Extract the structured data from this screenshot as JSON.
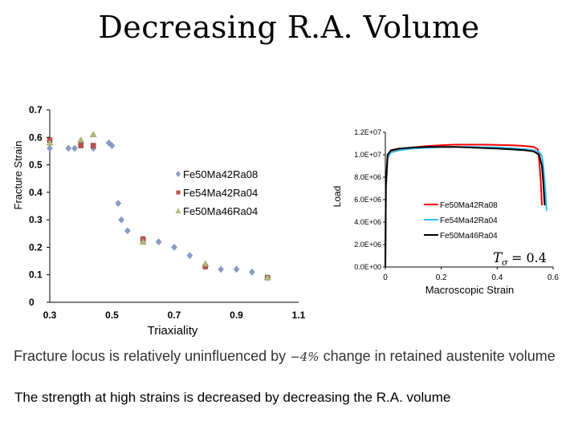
{
  "title": "Decreasing R.A. Volume",
  "caption": {
    "before": "Fracture locus is relatively uninfluenced by",
    "math": "−4%",
    "after": "change in retained austenite volume"
  },
  "note": "The strength at high strains is decreased by decreasing the R.A. volume",
  "chart_data": [
    {
      "type": "scatter",
      "xlabel": "Triaxiality",
      "ylabel": "Fracture Strain",
      "xlim": [
        0.3,
        1.1
      ],
      "ylim": [
        0,
        0.7
      ],
      "xticks": [
        "0.3",
        "0.5",
        "0.7",
        "0.9",
        "1.1"
      ],
      "yticks": [
        "0",
        "0.1",
        "0.2",
        "0.3",
        "0.4",
        "0.5",
        "0.6",
        "0.7"
      ],
      "legend_position": "center-right",
      "series": [
        {
          "name": "Fe50Ma42Ra08",
          "marker": "diamond",
          "color": "#8a9cc8",
          "points": [
            [
              0.3,
              0.56
            ],
            [
              0.36,
              0.56
            ],
            [
              0.38,
              0.56
            ],
            [
              0.4,
              0.58
            ],
            [
              0.44,
              0.56
            ],
            [
              0.49,
              0.58
            ],
            [
              0.5,
              0.57
            ],
            [
              0.52,
              0.36
            ],
            [
              0.53,
              0.3
            ],
            [
              0.55,
              0.26
            ],
            [
              0.6,
              0.23
            ],
            [
              0.65,
              0.22
            ],
            [
              0.7,
              0.2
            ],
            [
              0.75,
              0.17
            ],
            [
              0.8,
              0.13
            ],
            [
              0.85,
              0.12
            ],
            [
              0.9,
              0.12
            ],
            [
              0.95,
              0.11
            ],
            [
              1.0,
              0.09
            ]
          ]
        },
        {
          "name": "Fe54Ma42Ra04",
          "marker": "square",
          "color": "#c0504d",
          "points": [
            [
              0.3,
              0.59
            ],
            [
              0.4,
              0.57
            ],
            [
              0.44,
              0.57
            ],
            [
              0.6,
              0.23
            ],
            [
              0.8,
              0.13
            ],
            [
              1.0,
              0.09
            ]
          ]
        },
        {
          "name": "Fe50Ma46Ra04",
          "marker": "triangle",
          "color": "#b5b87a",
          "points": [
            [
              0.3,
              0.58
            ],
            [
              0.4,
              0.59
            ],
            [
              0.44,
              0.61
            ],
            [
              0.6,
              0.22
            ],
            [
              0.8,
              0.14
            ],
            [
              1.0,
              0.09
            ]
          ]
        }
      ]
    },
    {
      "type": "line",
      "xlabel": "Macroscopic Strain",
      "ylabel": "Load",
      "xlim": [
        0,
        0.6
      ],
      "ylim": [
        0,
        12000000
      ],
      "xticks": [
        "0",
        "0.2",
        "0.4",
        "0.6"
      ],
      "yticks": [
        "0.0E+00",
        "2.0E+06",
        "4.0E+06",
        "6.0E+06",
        "8.0E+06",
        "1.0E+07",
        "1.2E+07"
      ],
      "legend_position": "center-right",
      "annotation": {
        "symbol": "T",
        "subscript": "σ",
        "equals": "= 0.4"
      },
      "series": [
        {
          "name": "Fe50Ma42Ra08",
          "color": "#ff0000",
          "x": [
            0,
            0.002,
            0.008,
            0.02,
            0.05,
            0.1,
            0.15,
            0.2,
            0.25,
            0.3,
            0.35,
            0.4,
            0.45,
            0.5,
            0.53,
            0.545,
            0.55,
            0.555,
            0.56
          ],
          "y": [
            0,
            7000000,
            9800000,
            10300000,
            10500000,
            10650000,
            10780000,
            10850000,
            10900000,
            10900000,
            10900000,
            10880000,
            10850000,
            10780000,
            10700000,
            10500000,
            9500000,
            8000000,
            5500000
          ]
        },
        {
          "name": "Fe54Ma42Ra04",
          "color": "#33bbee",
          "x": [
            0,
            0.002,
            0.008,
            0.02,
            0.05,
            0.1,
            0.15,
            0.2,
            0.25,
            0.3,
            0.35,
            0.4,
            0.45,
            0.5,
            0.53,
            0.55,
            0.56,
            0.565,
            0.572,
            0.577
          ],
          "y": [
            0,
            7000000,
            9700000,
            10200000,
            10400000,
            10550000,
            10620000,
            10680000,
            10700000,
            10700000,
            10680000,
            10650000,
            10600000,
            10500000,
            10400000,
            10250000,
            9900000,
            9000000,
            7000000,
            5000000
          ]
        },
        {
          "name": "Fe50Ma46Ra04",
          "color": "#000000",
          "x": [
            0,
            0.002,
            0.008,
            0.02,
            0.05,
            0.1,
            0.15,
            0.2,
            0.25,
            0.3,
            0.35,
            0.4,
            0.45,
            0.5,
            0.53,
            0.55,
            0.56,
            0.565,
            0.57
          ],
          "y": [
            0,
            7200000,
            10000000,
            10400000,
            10550000,
            10650000,
            10700000,
            10700000,
            10700000,
            10650000,
            10600000,
            10550000,
            10480000,
            10400000,
            10300000,
            10000000,
            9000000,
            7500000,
            5500000
          ]
        }
      ]
    }
  ]
}
